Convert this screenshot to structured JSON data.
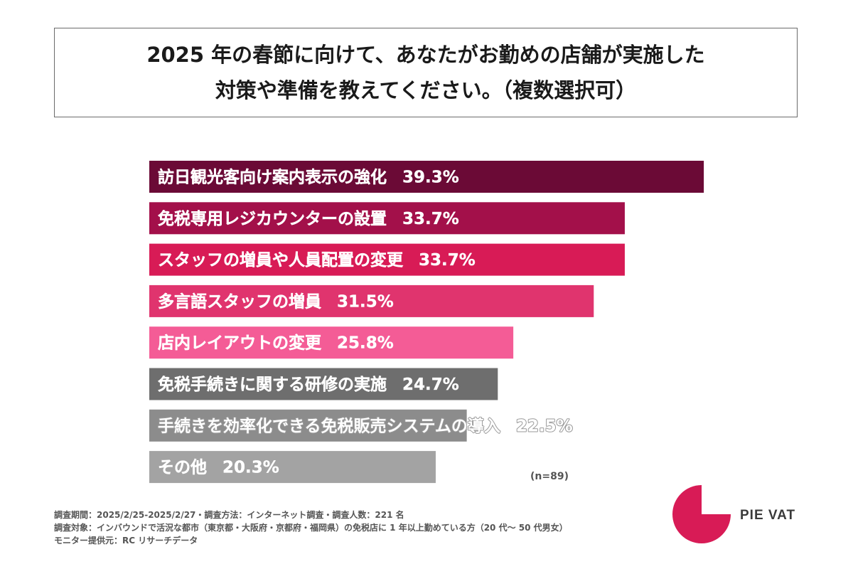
{
  "title_lines": [
    "2025 年の春節に向けて、あなたがお勤めの店舗が実施した",
    "対策や準備を教えてください。（複数選択可）"
  ],
  "chart_data": {
    "type": "bar",
    "orientation": "horizontal",
    "title": "2025 年の春節に向けて、あなたがお勤めの店舗が実施した対策や準備を教えてください。（複数選択可）",
    "unit": "%",
    "xlim": [
      0,
      40
    ],
    "categories": [
      "訪日観光客向け案内表示の強化",
      "免税専用レジカウンターの設置",
      "スタッフの増員や人員配置の変更",
      "多言語スタッフの増員",
      "店内レイアウトの変更",
      "免税手続きに関する研修の実施",
      "手続きを効率化できる免税販売システムの導入",
      "その他"
    ],
    "values": [
      39.3,
      33.7,
      33.7,
      31.5,
      25.8,
      24.7,
      22.5,
      20.3
    ],
    "value_labels": [
      "39.3%",
      "33.7%",
      "33.7%",
      "31.5%",
      "25.8%",
      "24.7%",
      "22.5%",
      "20.3%"
    ],
    "colors": [
      "#6b0a36",
      "#a3104a",
      "#d81b56",
      "#e0346e",
      "#f45c96",
      "#6e6e6e",
      "#8c8c8c",
      "#a3a3a3"
    ],
    "grid": false,
    "legend": "none"
  },
  "sample_note": "(n=89)",
  "footer_lines": [
    "調査期間：2025/2/25-2025/2/27・調査方法：インターネット調査・調査人数：221 名",
    "調査対象：インバウンドで活況な都市（東京都・大阪府・京都府・福岡県）の免税店に 1 年以上勤めている方（20 代～ 50 代男女）",
    "モニター提供元：RC リサーチデータ"
  ],
  "brand": {
    "name": "PIE VAT",
    "color": "#d81b56"
  }
}
